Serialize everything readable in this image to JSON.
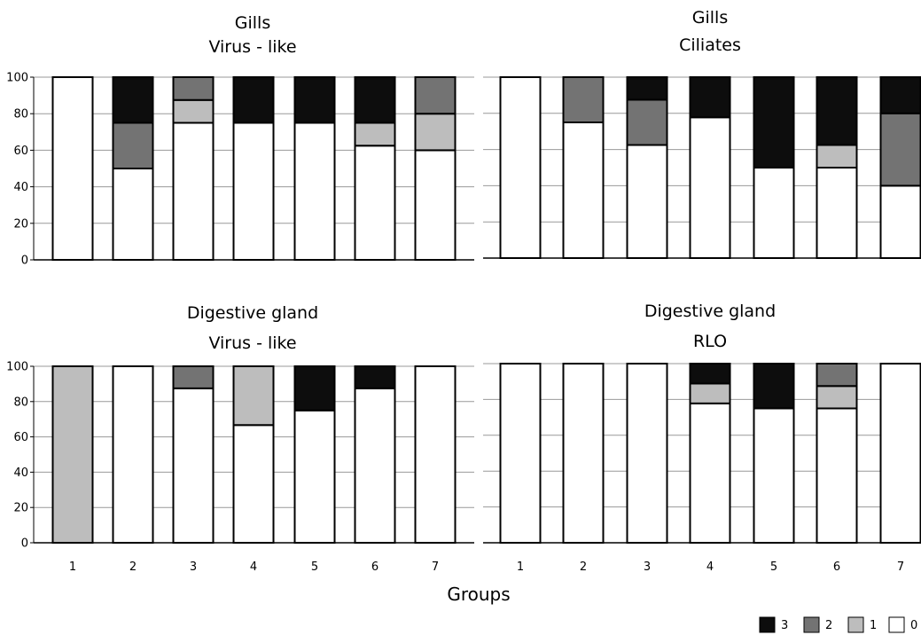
{
  "chart_data": {
    "type": "bar",
    "stacked": true,
    "xlabel": "Groups",
    "categories": [
      "1",
      "2",
      "3",
      "4",
      "5",
      "6",
      "7"
    ],
    "legend": {
      "position": "bottom-right",
      "entries": [
        {
          "label": "3",
          "color": "#0d0d0d"
        },
        {
          "label": "2",
          "color": "#737373"
        },
        {
          "label": "1",
          "color": "#bdbdbd"
        },
        {
          "label": "0",
          "color": "#ffffff"
        }
      ]
    },
    "series_colors": {
      "0": "#ffffff",
      "1": "#bdbdbd",
      "2": "#737373",
      "3": "#0d0d0d"
    },
    "yticks": [
      "0",
      "20",
      "40",
      "60",
      "80",
      "100"
    ],
    "ylim": [
      0,
      100
    ],
    "grid": true,
    "panels": [
      {
        "title_lines": [
          "Gills",
          "Virus - like"
        ],
        "show_y_ticks": true,
        "show_x_ticks": false,
        "series": [
          {
            "name": "0",
            "values": [
              100,
              50,
              75,
              75,
              75,
              62.5,
              60
            ]
          },
          {
            "name": "1",
            "values": [
              0,
              0,
              12.5,
              0,
              0,
              12.5,
              20
            ]
          },
          {
            "name": "2",
            "values": [
              0,
              25,
              12.5,
              0,
              0,
              0,
              20
            ]
          },
          {
            "name": "3",
            "values": [
              0,
              25,
              0,
              25,
              25,
              25,
              0
            ]
          }
        ]
      },
      {
        "title_lines": [
          "Gills",
          "Ciliates"
        ],
        "show_y_ticks": false,
        "show_x_ticks": false,
        "series": [
          {
            "name": "0",
            "values": [
              100,
              75,
              62.5,
              77.8,
              50,
              50,
              40
            ]
          },
          {
            "name": "1",
            "values": [
              0,
              0,
              0,
              0,
              0,
              12.5,
              0
            ]
          },
          {
            "name": "2",
            "values": [
              0,
              25,
              25,
              0,
              0,
              0,
              40
            ]
          },
          {
            "name": "3",
            "values": [
              0,
              0,
              12.5,
              22.2,
              50,
              37.5,
              20
            ]
          }
        ]
      },
      {
        "title_lines": [
          "Digestive gland",
          "Virus - like"
        ],
        "show_y_ticks": true,
        "show_x_ticks": true,
        "series": [
          {
            "name": "0",
            "values": [
              0,
              100,
              87.5,
              66.7,
              75,
              87.5,
              100
            ]
          },
          {
            "name": "1",
            "values": [
              100,
              0,
              0,
              33.3,
              0,
              0,
              0
            ]
          },
          {
            "name": "2",
            "values": [
              0,
              0,
              12.5,
              0,
              0,
              0,
              0
            ]
          },
          {
            "name": "3",
            "values": [
              0,
              0,
              0,
              0,
              25,
              12.5,
              0
            ]
          }
        ]
      },
      {
        "title_lines": [
          "Digestive gland",
          "RLO"
        ],
        "show_y_ticks": false,
        "show_x_ticks": true,
        "series": [
          {
            "name": "0",
            "values": [
              100,
              100,
              100,
              77.8,
              75,
              75,
              100
            ]
          },
          {
            "name": "1",
            "values": [
              0,
              0,
              0,
              11.1,
              0,
              12.5,
              0
            ]
          },
          {
            "name": "2",
            "values": [
              0,
              0,
              0,
              0,
              0,
              12.5,
              0
            ]
          },
          {
            "name": "3",
            "values": [
              0,
              0,
              0,
              11.1,
              25,
              0,
              0
            ]
          }
        ]
      }
    ]
  }
}
